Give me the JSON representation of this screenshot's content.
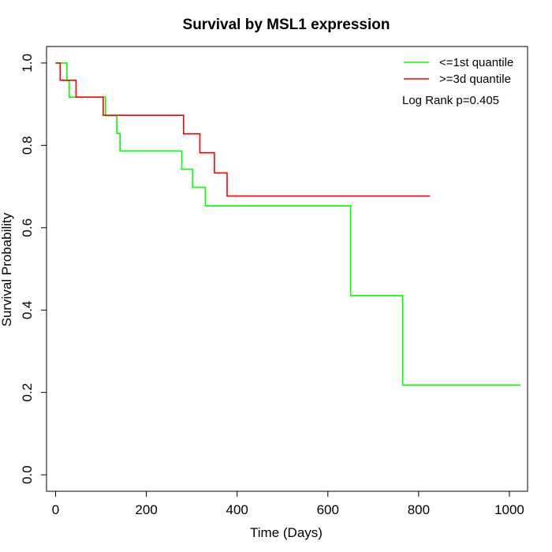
{
  "chart_data": {
    "type": "line",
    "title": "Survival by MSL1 expression",
    "xlabel": "Time (Days)",
    "ylabel": "Survival Probability",
    "xlim": [
      -20,
      1040
    ],
    "ylim": [
      -0.04,
      1.04
    ],
    "x_ticks": [
      0,
      200,
      400,
      600,
      800,
      1000
    ],
    "x_tick_labels": [
      "0",
      "200",
      "400",
      "600",
      "800",
      "1000"
    ],
    "y_ticks": [
      0.0,
      0.2,
      0.4,
      0.6,
      0.8,
      1.0
    ],
    "y_tick_labels": [
      "0.0",
      "0.2",
      "0.4",
      "0.6",
      "0.8",
      "1.0"
    ],
    "grid": false,
    "legend_position": "top-right",
    "annotation": "Log Rank p=0.405",
    "series": [
      {
        "name": "<=1st quantile",
        "color": "#00ff00",
        "step_points": [
          [
            0,
            1.0
          ],
          [
            25,
            1.0
          ],
          [
            25,
            0.957
          ],
          [
            30,
            0.957
          ],
          [
            30,
            0.917
          ],
          [
            110,
            0.917
          ],
          [
            110,
            0.872
          ],
          [
            135,
            0.872
          ],
          [
            135,
            0.829
          ],
          [
            142,
            0.829
          ],
          [
            142,
            0.786
          ],
          [
            278,
            0.786
          ],
          [
            278,
            0.742
          ],
          [
            302,
            0.742
          ],
          [
            302,
            0.698
          ],
          [
            330,
            0.698
          ],
          [
            330,
            0.653
          ],
          [
            650,
            0.653
          ],
          [
            650,
            0.435
          ],
          [
            765,
            0.435
          ],
          [
            765,
            0.218
          ],
          [
            1025,
            0.218
          ]
        ]
      },
      {
        "name": ">=3d quantile",
        "color": "#ff0000",
        "step_points": [
          [
            0,
            1.0
          ],
          [
            10,
            1.0
          ],
          [
            10,
            0.958
          ],
          [
            45,
            0.958
          ],
          [
            45,
            0.917
          ],
          [
            105,
            0.917
          ],
          [
            105,
            0.873
          ],
          [
            282,
            0.873
          ],
          [
            282,
            0.828
          ],
          [
            318,
            0.828
          ],
          [
            318,
            0.782
          ],
          [
            350,
            0.782
          ],
          [
            350,
            0.733
          ],
          [
            378,
            0.733
          ],
          [
            378,
            0.677
          ],
          [
            825,
            0.677
          ]
        ]
      }
    ]
  }
}
